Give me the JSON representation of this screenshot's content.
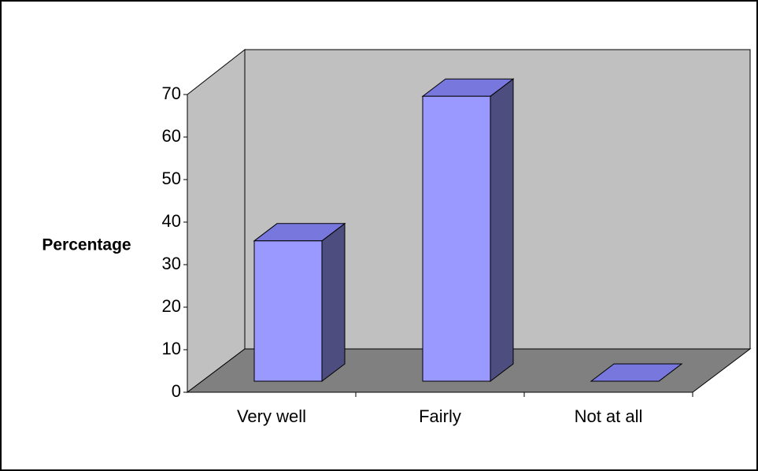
{
  "chart_data": {
    "type": "bar3d",
    "y_label": "Percentage",
    "categories": [
      "Very well",
      "Fairly",
      "Not at all"
    ],
    "values": [
      33,
      67,
      0
    ],
    "color": "#9999ff",
    "ylim": [
      0,
      70
    ],
    "yticks": [
      0,
      10,
      20,
      30,
      40,
      50,
      60,
      70
    ]
  }
}
